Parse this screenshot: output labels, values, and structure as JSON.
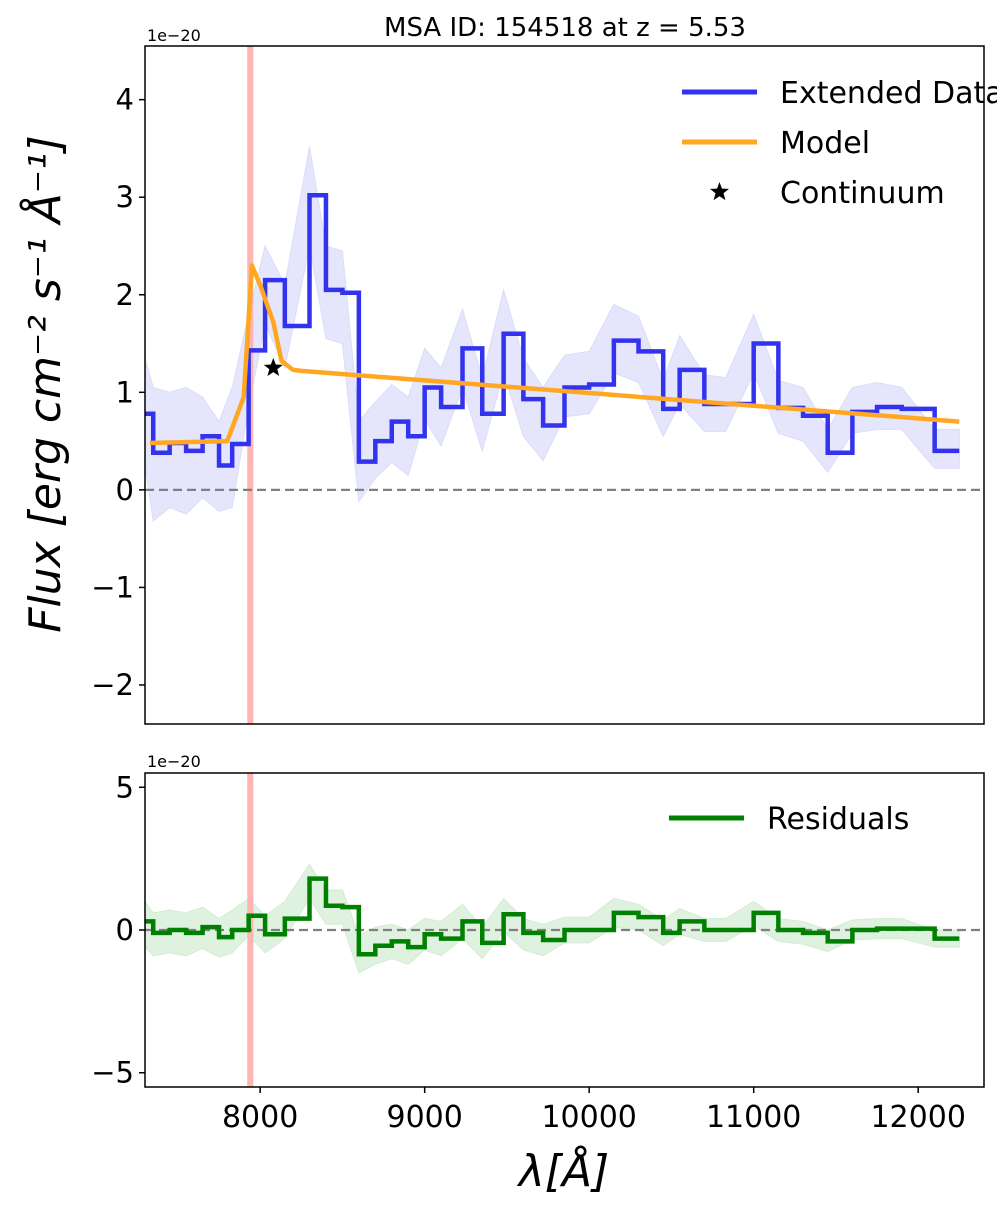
{
  "chart_data": [
    {
      "type": "line",
      "title": "MSA ID: 154518 at z = 5.53",
      "ylabel": "Flux [erg cm⁻² s⁻¹ Å⁻¹]",
      "xlabel": "",
      "offset_text": "1e−20",
      "xlim": [
        7300,
        12400
      ],
      "ylim": [
        -2.4,
        4.55
      ],
      "yticks": [
        -2,
        -1,
        0,
        1,
        2,
        3,
        4
      ],
      "ytick_labels": [
        "−2",
        "−1",
        "0",
        "1",
        "2",
        "3",
        "4"
      ],
      "grid": false,
      "legend_position": "top-right",
      "vertical_line": {
        "x": 7940,
        "color": "#ffb3b3"
      },
      "zero_line": {
        "y": 0,
        "color": "#808080"
      },
      "series": [
        {
          "name": "Extended Data",
          "kind": "step",
          "color": "#3333ee",
          "band_color": "#dcdcfa",
          "x": [
            7300,
            7350,
            7450,
            7550,
            7650,
            7750,
            7830,
            7930,
            8030,
            8150,
            8300,
            8400,
            8500,
            8600,
            8700,
            8800,
            8900,
            9000,
            9100,
            9230,
            9350,
            9480,
            9600,
            9720,
            9850,
            10000,
            10150,
            10300,
            10450,
            10550,
            10700,
            10830,
            11000,
            11150,
            11300,
            11450,
            11600,
            11750,
            11900,
            12100,
            12250
          ],
          "y": [
            0.78,
            0.38,
            0.48,
            0.4,
            0.55,
            0.25,
            0.47,
            1.43,
            2.15,
            1.68,
            3.02,
            2.05,
            2.02,
            0.29,
            0.5,
            0.7,
            0.55,
            1.05,
            0.85,
            1.45,
            0.78,
            1.6,
            0.93,
            0.66,
            1.05,
            1.08,
            1.53,
            1.42,
            0.83,
            1.23,
            0.88,
            0.88,
            1.5,
            0.84,
            0.76,
            0.38,
            0.8,
            0.85,
            0.83,
            0.4,
            0.4
          ],
          "y_lower": [
            0.25,
            -0.32,
            -0.18,
            -0.25,
            -0.08,
            -0.22,
            -0.18,
            0.85,
            1.7,
            1.25,
            2.5,
            1.55,
            1.5,
            -0.12,
            0.12,
            0.28,
            0.15,
            0.72,
            0.45,
            1.05,
            0.4,
            1.2,
            0.55,
            0.3,
            0.75,
            0.78,
            1.2,
            1.1,
            0.55,
            0.88,
            0.6,
            0.6,
            1.2,
            0.58,
            0.5,
            0.18,
            0.58,
            0.62,
            0.62,
            0.22,
            0.22
          ],
          "y_upper": [
            1.35,
            1.05,
            1.0,
            1.05,
            0.95,
            0.7,
            1.05,
            1.8,
            2.5,
            2.1,
            3.52,
            2.5,
            2.45,
            0.7,
            0.9,
            1.08,
            0.95,
            1.45,
            1.25,
            1.85,
            1.15,
            2.05,
            1.35,
            1.05,
            1.38,
            1.42,
            1.9,
            1.78,
            1.12,
            1.58,
            1.18,
            1.15,
            1.8,
            1.12,
            1.05,
            0.62,
            1.05,
            1.1,
            1.05,
            0.62,
            0.62
          ]
        },
        {
          "name": "Model",
          "kind": "line",
          "color": "#ffa722",
          "x": [
            7330,
            7800,
            7900,
            7950,
            8000,
            8080,
            8130,
            8200,
            8250,
            12250
          ],
          "y": [
            0.48,
            0.5,
            0.95,
            2.3,
            2.1,
            1.72,
            1.32,
            1.23,
            1.22,
            0.7
          ]
        },
        {
          "name": "Continuum",
          "kind": "scatter",
          "marker": "star",
          "color": "#000000",
          "x": [
            8080
          ],
          "y": [
            1.25
          ]
        }
      ]
    },
    {
      "type": "line",
      "title": "",
      "xlabel": "λ[Å]",
      "ylabel": "",
      "offset_text": "1e−20",
      "xlim": [
        7300,
        12400
      ],
      "ylim": [
        -5.5,
        5.5
      ],
      "xticks": [
        8000,
        9000,
        10000,
        11000,
        12000
      ],
      "xtick_labels": [
        "8000",
        "9000",
        "10000",
        "11000",
        "12000"
      ],
      "yticks": [
        -5,
        0,
        5
      ],
      "ytick_labels": [
        "−5",
        "0",
        "5"
      ],
      "grid": false,
      "legend_position": "top-right",
      "vertical_line": {
        "x": 7940,
        "color": "#ffb3b3"
      },
      "zero_line": {
        "y": 0,
        "color": "#808080"
      },
      "series": [
        {
          "name": "Residuals",
          "kind": "step",
          "color": "#008000",
          "band_color": "#d4ecd4",
          "x": [
            7300,
            7350,
            7450,
            7550,
            7650,
            7750,
            7830,
            7930,
            8030,
            8150,
            8300,
            8400,
            8500,
            8600,
            8700,
            8800,
            8900,
            9000,
            9100,
            9230,
            9350,
            9480,
            9600,
            9720,
            9850,
            10000,
            10150,
            10300,
            10450,
            10550,
            10700,
            10830,
            11000,
            11150,
            11300,
            11450,
            11600,
            11750,
            11900,
            12100,
            12250
          ],
          "y": [
            0.3,
            -0.1,
            0.0,
            -0.1,
            0.1,
            -0.25,
            0.0,
            0.5,
            -0.15,
            0.4,
            1.8,
            0.85,
            0.8,
            -0.85,
            -0.55,
            -0.4,
            -0.6,
            -0.15,
            -0.3,
            0.3,
            -0.45,
            0.55,
            -0.1,
            -0.35,
            0.0,
            0.0,
            0.6,
            0.45,
            -0.1,
            0.3,
            0.0,
            0.0,
            0.6,
            0.0,
            -0.1,
            -0.4,
            0.0,
            0.05,
            0.05,
            -0.3,
            -0.3
          ],
          "y_lower": [
            -0.6,
            -0.9,
            -0.8,
            -0.9,
            -0.65,
            -0.95,
            -0.8,
            -0.2,
            -0.8,
            -0.3,
            1.1,
            0.2,
            0.2,
            -1.5,
            -1.2,
            -1.0,
            -1.2,
            -0.7,
            -0.9,
            -0.3,
            -1.0,
            -0.05,
            -0.7,
            -0.9,
            -0.45,
            -0.45,
            0.1,
            0.0,
            -0.55,
            -0.15,
            -0.4,
            -0.4,
            0.15,
            -0.4,
            -0.5,
            -0.75,
            -0.35,
            -0.3,
            -0.3,
            -0.6,
            -0.6
          ],
          "y_upper": [
            1.0,
            0.6,
            0.7,
            0.6,
            0.8,
            0.4,
            0.7,
            1.1,
            0.5,
            1.0,
            2.3,
            1.4,
            1.4,
            -0.2,
            0.1,
            0.2,
            0.0,
            0.4,
            0.3,
            0.9,
            0.1,
            1.1,
            0.4,
            0.2,
            0.45,
            0.45,
            1.1,
            0.9,
            0.35,
            0.75,
            0.4,
            0.4,
            1.0,
            0.4,
            0.3,
            0.0,
            0.35,
            0.4,
            0.4,
            0.0,
            0.0
          ]
        }
      ]
    }
  ]
}
